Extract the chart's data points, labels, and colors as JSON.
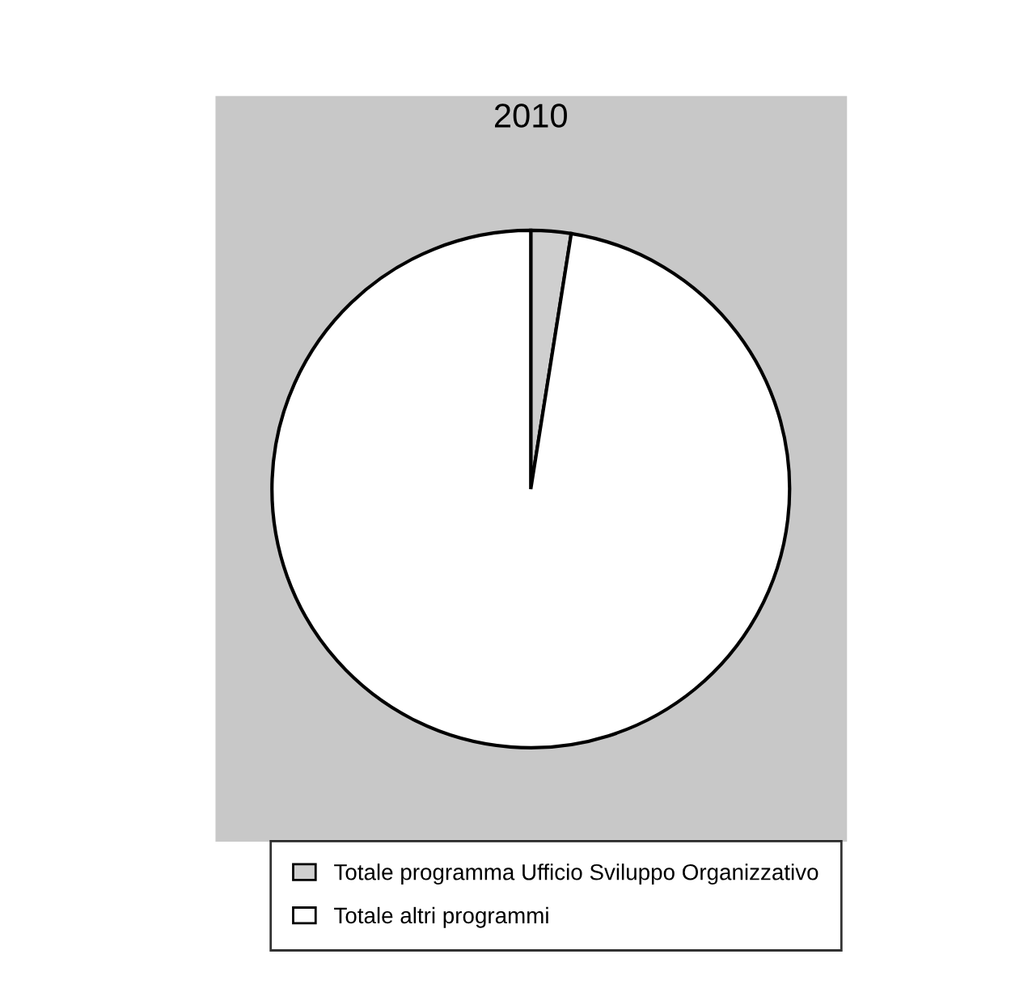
{
  "chart_data": {
    "type": "pie",
    "title": "2010",
    "categories": [
      "Totale programma Ufficio Sviluppo Organizzativo",
      "Totale altri programmi"
    ],
    "values": [
      2.5,
      97.5
    ],
    "colors": [
      "#cfcfcf",
      "#ffffff"
    ],
    "legend": "bottom"
  }
}
